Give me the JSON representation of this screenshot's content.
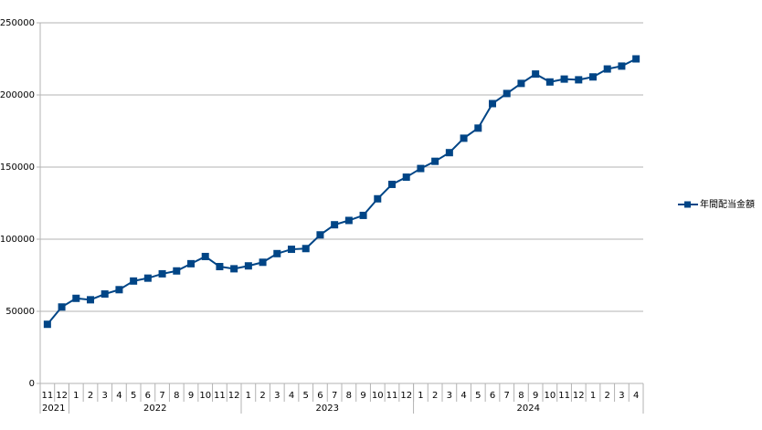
{
  "chart_data": {
    "type": "line",
    "categories": [
      "11",
      "12",
      "1",
      "2",
      "3",
      "4",
      "5",
      "6",
      "7",
      "8",
      "9",
      "10",
      "11",
      "12",
      "1",
      "2",
      "3",
      "4",
      "5",
      "6",
      "7",
      "8",
      "9",
      "10",
      "11",
      "12",
      "1",
      "2",
      "3",
      "4",
      "5",
      "6",
      "7",
      "8",
      "9",
      "10",
      "11",
      "12",
      "1",
      "2",
      "3",
      "4"
    ],
    "category_groups": [
      {
        "label": "2021",
        "count": 2
      },
      {
        "label": "2022",
        "count": 12
      },
      {
        "label": "2023",
        "count": 12
      },
      {
        "label": "2024",
        "count": 16
      }
    ],
    "series": [
      {
        "name": "年間配当金額",
        "color": "#004586",
        "values": [
          41000,
          53000,
          59000,
          58000,
          62000,
          65000,
          71000,
          73000,
          76000,
          78000,
          83000,
          88000,
          81000,
          79500,
          81500,
          84000,
          90000,
          93000,
          93500,
          103000,
          110000,
          113000,
          116500,
          128000,
          138000,
          143000,
          149000,
          154000,
          160000,
          170000,
          177000,
          194000,
          201000,
          208000,
          214500,
          209000,
          211000,
          210500,
          212500,
          218000,
          220000,
          225000
        ]
      }
    ],
    "ylim": [
      0,
      250000
    ],
    "yticks": [
      0,
      50000,
      100000,
      150000,
      200000,
      250000
    ],
    "grid": true,
    "legend": "right"
  }
}
